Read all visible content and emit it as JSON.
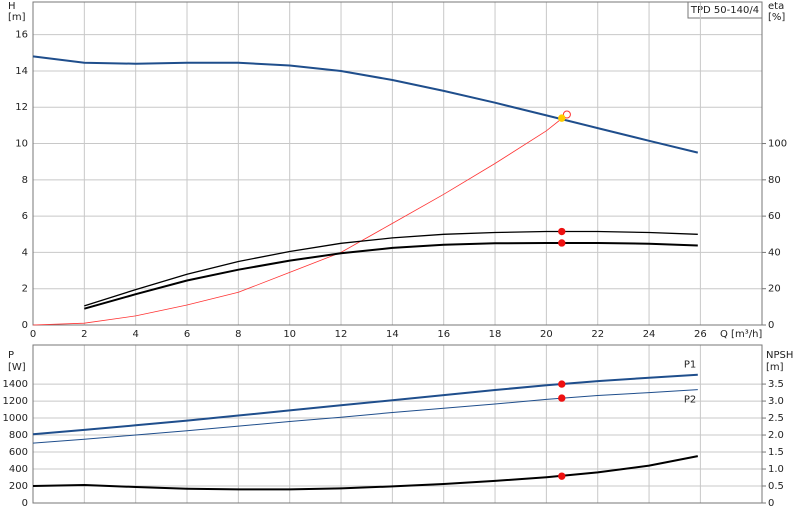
{
  "chart_data": [
    {
      "type": "line",
      "title": "TPD 50-140/4",
      "y_label": "H",
      "y_unit": "[m]",
      "y2_label": "eta",
      "y2_unit": "[%]",
      "x_label": "Q [m³/h]",
      "xlim": [
        0,
        28.4
      ],
      "xticks": [
        0,
        2,
        4,
        6,
        8,
        10,
        12,
        14,
        16,
        18,
        20,
        22,
        24,
        26
      ],
      "ylim": [
        0,
        17.8
      ],
      "yticks": [
        0,
        2,
        4,
        6,
        8,
        10,
        12,
        14,
        16
      ],
      "y2lim": [
        0,
        178
      ],
      "y2ticks": [
        0,
        20,
        40,
        60,
        80,
        100
      ],
      "grid": true,
      "x": [
        0,
        2,
        4,
        6,
        8,
        10,
        12,
        14,
        16,
        18,
        20,
        22,
        24,
        25.9
      ],
      "series": [
        {
          "color": "#1f4e8c",
          "line_width": 2,
          "values": [
            14.8,
            14.45,
            14.4,
            14.45,
            14.45,
            14.3,
            14.0,
            13.5,
            12.9,
            12.25,
            11.55,
            10.85,
            10.15,
            9.5
          ]
        },
        {
          "color": "#ff3333",
          "line_width": 0.8,
          "axis": "y2",
          "x": [
            0,
            2,
            4,
            6,
            8,
            10,
            12,
            14,
            16,
            18,
            20,
            20.8
          ],
          "values": [
            0,
            1,
            5,
            11,
            18,
            29,
            40,
            56,
            72,
            89,
            107,
            116
          ]
        },
        {
          "color": "#000000",
          "line_width": 1.3,
          "axis": "y2",
          "x": [
            2,
            4,
            6,
            8,
            10,
            12,
            14,
            16,
            18,
            20,
            22,
            24,
            25.9
          ],
          "values": [
            10.5,
            19.5,
            28,
            35,
            40.5,
            45,
            48,
            50,
            51,
            51.5,
            51.5,
            51,
            50
          ]
        },
        {
          "color": "#000000",
          "line_width": 2,
          "axis": "y2",
          "x": [
            2,
            4,
            6,
            8,
            10,
            12,
            14,
            16,
            18,
            20,
            22,
            24,
            25.9
          ],
          "values": [
            9,
            17,
            24.5,
            30.5,
            35.5,
            39.5,
            42.5,
            44.2,
            45,
            45.2,
            45.2,
            44.8,
            43.8
          ]
        }
      ],
      "markers": [
        {
          "x": 20.8,
          "y": 116,
          "axis": "y2",
          "color": "#ff3333",
          "style": "open"
        },
        {
          "x": 20.6,
          "y": 11.4,
          "color": "#ffcc00"
        },
        {
          "x": 20.6,
          "y": 51.5,
          "axis": "y2",
          "color": "#ee1111"
        },
        {
          "x": 20.6,
          "y": 45.2,
          "axis": "y2",
          "color": "#ee1111"
        }
      ]
    },
    {
      "type": "line",
      "y_label": "P",
      "y_unit": "[W]",
      "y2_label": "NPSH",
      "y2_unit": "[m]",
      "xlim": [
        0,
        28.4
      ],
      "ylim": [
        0,
        1860
      ],
      "yticks": [
        0,
        200,
        400,
        600,
        800,
        1000,
        1200,
        1400
      ],
      "y2lim": [
        0,
        4.65
      ],
      "y2ticks": [
        0,
        0.5,
        {
          "value": 1,
          "label": "1.0"
        },
        1.5,
        {
          "value": 2,
          "label": "2.0"
        },
        2.5,
        {
          "value": 3,
          "label": "3.0"
        },
        3.5
      ],
      "grid": true,
      "x": [
        0,
        2,
        4,
        6,
        8,
        10,
        12,
        14,
        16,
        18,
        20,
        22,
        24,
        25.9
      ],
      "series": [
        {
          "name": "P1",
          "color": "#1f4e8c",
          "line_width": 2,
          "values": [
            810,
            860,
            915,
            970,
            1030,
            1090,
            1150,
            1210,
            1270,
            1330,
            1385,
            1435,
            1475,
            1510
          ]
        },
        {
          "name": "P2",
          "color": "#1f4e8c",
          "line_width": 1,
          "values": [
            705,
            750,
            800,
            850,
            905,
            960,
            1010,
            1065,
            1115,
            1165,
            1220,
            1265,
            1300,
            1335
          ]
        },
        {
          "color": "#000000",
          "line_width": 2,
          "axis": "y2",
          "values": [
            0.5,
            0.53,
            0.47,
            0.42,
            0.4,
            0.4,
            0.43,
            0.49,
            0.56,
            0.65,
            0.76,
            0.9,
            1.1,
            1.38
          ]
        }
      ],
      "markers": [
        {
          "x": 20.6,
          "y": 1400,
          "color": "#ee1111"
        },
        {
          "x": 20.6,
          "y": 1235,
          "color": "#ee1111"
        },
        {
          "x": 20.6,
          "y": 0.79,
          "axis": "y2",
          "color": "#ee1111"
        }
      ]
    }
  ]
}
